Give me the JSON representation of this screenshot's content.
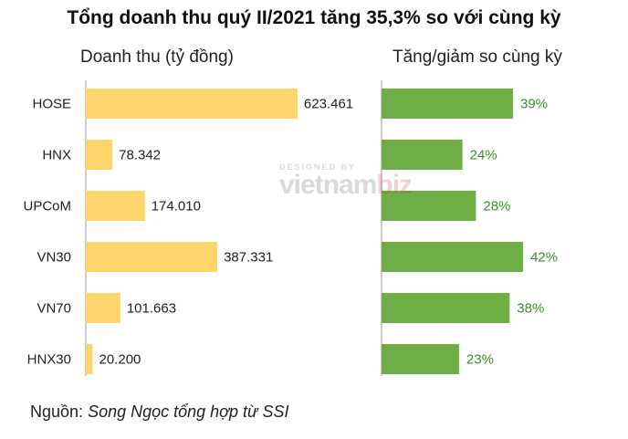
{
  "title": "Tổng doanh thu quý II/2021 tăng 35,3% so với cùng kỳ",
  "watermark": {
    "top": "DESIGNED BY",
    "brand_main": "vietnam",
    "brand_accent": "biz"
  },
  "source": {
    "label": "Nguồn:",
    "text": "Song Ngọc tổng hợp từ SSI"
  },
  "colors": {
    "revenue_bar": "#fcd66b",
    "growth_bar": "#6fad45",
    "growth_text": "#3f8a2a",
    "axis": "#bbbbbb"
  },
  "chart_data": [
    {
      "type": "bar",
      "orientation": "horizontal",
      "title": "Doanh thu (tỷ đồng)",
      "categories": [
        "HOSE",
        "HNX",
        "UPCoM",
        "VN30",
        "VN70",
        "HNX30"
      ],
      "values": [
        623461,
        78342,
        174010,
        387331,
        101663,
        20200
      ],
      "labels": [
        "623.461",
        "78.342",
        "174.010",
        "387.331",
        "101.663",
        "20.200"
      ],
      "xlim": [
        0,
        1000000
      ]
    },
    {
      "type": "bar",
      "orientation": "horizontal",
      "title": "Tăng/giảm so cùng kỳ",
      "categories": [
        "HOSE",
        "HNX",
        "UPCoM",
        "VN30",
        "VN70",
        "HNX30"
      ],
      "values": [
        39,
        24,
        28,
        42,
        38,
        23
      ],
      "labels": [
        "39%",
        "24%",
        "28%",
        "42%",
        "38%",
        "23%"
      ],
      "unit": "%",
      "xlim": [
        0,
        65
      ]
    }
  ]
}
